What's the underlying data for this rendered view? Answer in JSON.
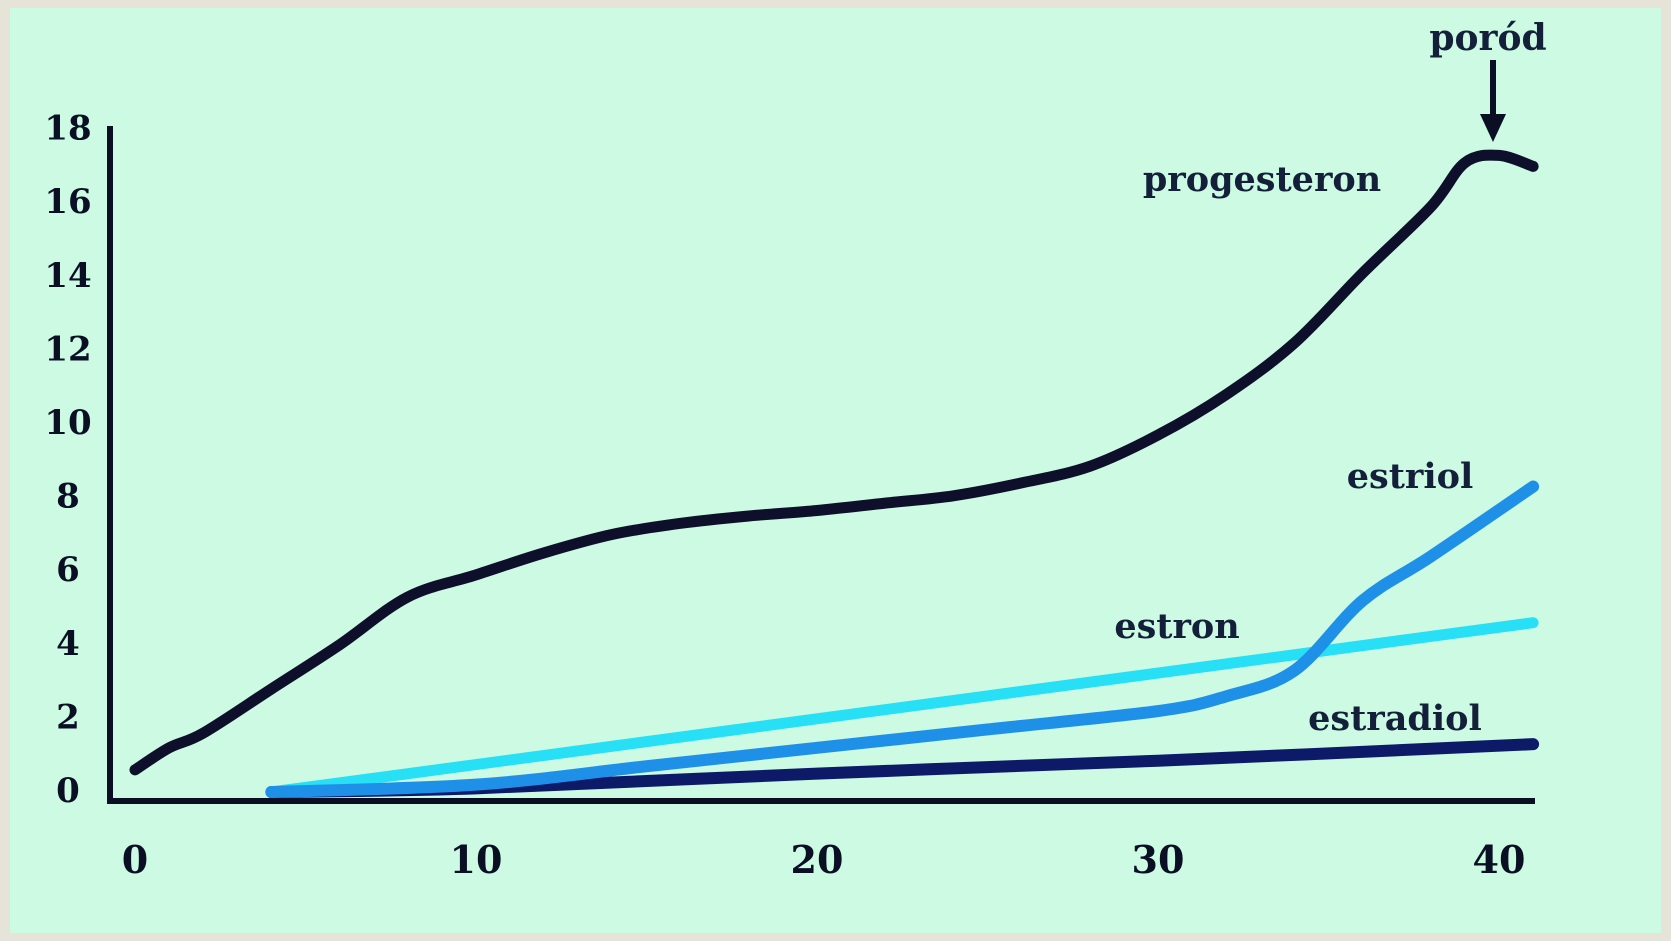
{
  "chart_data": {
    "type": "line",
    "title": "",
    "xlabel": "",
    "ylabel": "",
    "xlim": [
      0,
      41
    ],
    "ylim": [
      0,
      18
    ],
    "xticks": [
      0,
      10,
      20,
      30,
      40
    ],
    "yticks": [
      0,
      2,
      4,
      6,
      8,
      10,
      12,
      14,
      16,
      18
    ],
    "grid": false,
    "legend": "none (series labelled directly on the curves)",
    "annotation": {
      "text": "poród",
      "x": 40,
      "arrow": "down"
    },
    "series": [
      {
        "name": "progesteron",
        "color": "#0e0f2a",
        "x": [
          0,
          1,
          2,
          4,
          6,
          8,
          10,
          12,
          14,
          16,
          18,
          20,
          22,
          24,
          26,
          28,
          30,
          32,
          34,
          36,
          38,
          39,
          40,
          41
        ],
        "y": [
          0.6,
          1.2,
          1.6,
          2.8,
          4.0,
          5.3,
          5.9,
          6.5,
          7.0,
          7.3,
          7.5,
          7.65,
          7.85,
          8.05,
          8.4,
          8.85,
          9.7,
          10.8,
          12.2,
          14.1,
          15.9,
          17.1,
          17.3,
          17.0
        ]
      },
      {
        "name": "estriol",
        "color": "#1f90e8",
        "x": [
          4,
          10,
          15,
          20,
          25,
          30,
          32,
          34,
          36,
          38,
          41
        ],
        "y": [
          0,
          0.2,
          0.7,
          1.2,
          1.7,
          2.2,
          2.6,
          3.3,
          5.2,
          6.4,
          8.3
        ]
      },
      {
        "name": "estron",
        "color": "#27e0f5",
        "x": [
          4,
          41
        ],
        "y": [
          0,
          4.6
        ]
      },
      {
        "name": "estradiol",
        "color": "#0d1a68",
        "x": [
          4,
          10,
          20,
          30,
          41
        ],
        "y": [
          0,
          0.1,
          0.5,
          0.85,
          1.3
        ]
      }
    ]
  }
}
